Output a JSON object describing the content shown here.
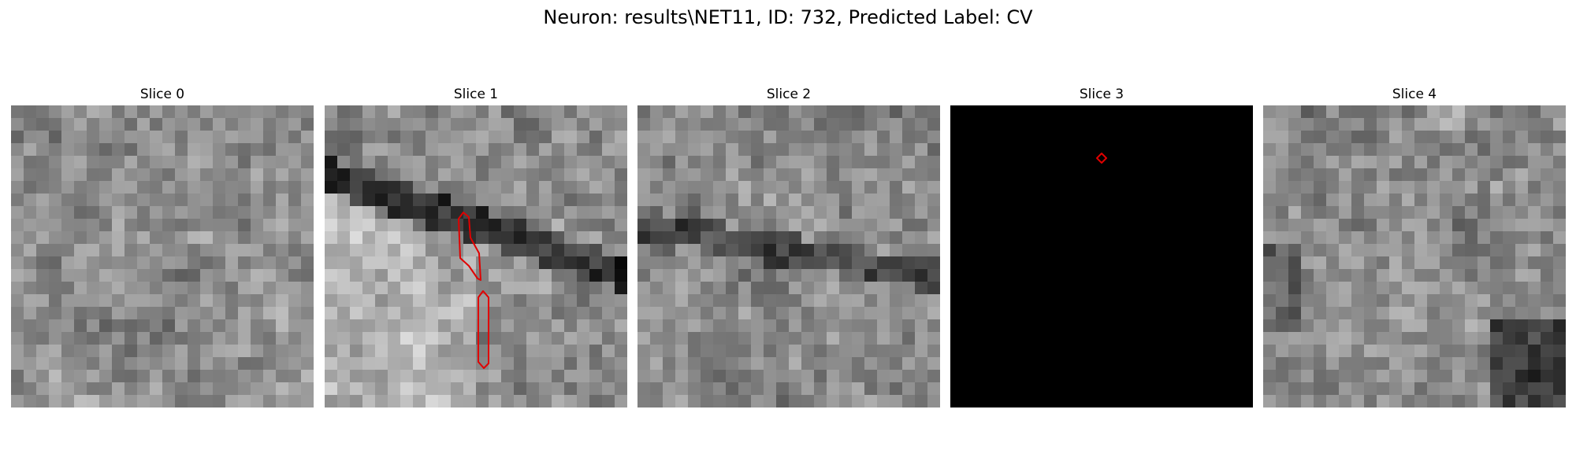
{
  "figure": {
    "title": "Neuron: results\\NET11, ID: 732, Predicted Label: CV"
  },
  "panels": [
    {
      "title": "Slice 0",
      "content": "grayscale noisy microscopy patch"
    },
    {
      "title": "Slice 1",
      "content": "grayscale microscopy patch with dark membrane band and two red outlined regions"
    },
    {
      "title": "Slice 2",
      "content": "grayscale microscopy patch with dark band"
    },
    {
      "title": "Slice 3",
      "content": "black mask with a single small red outlined region"
    },
    {
      "title": "Slice 4",
      "content": "grayscale microscopy patch with dark bottom-right corner"
    }
  ],
  "colors": {
    "contour": "#e00000",
    "mask_background": "#000000"
  }
}
